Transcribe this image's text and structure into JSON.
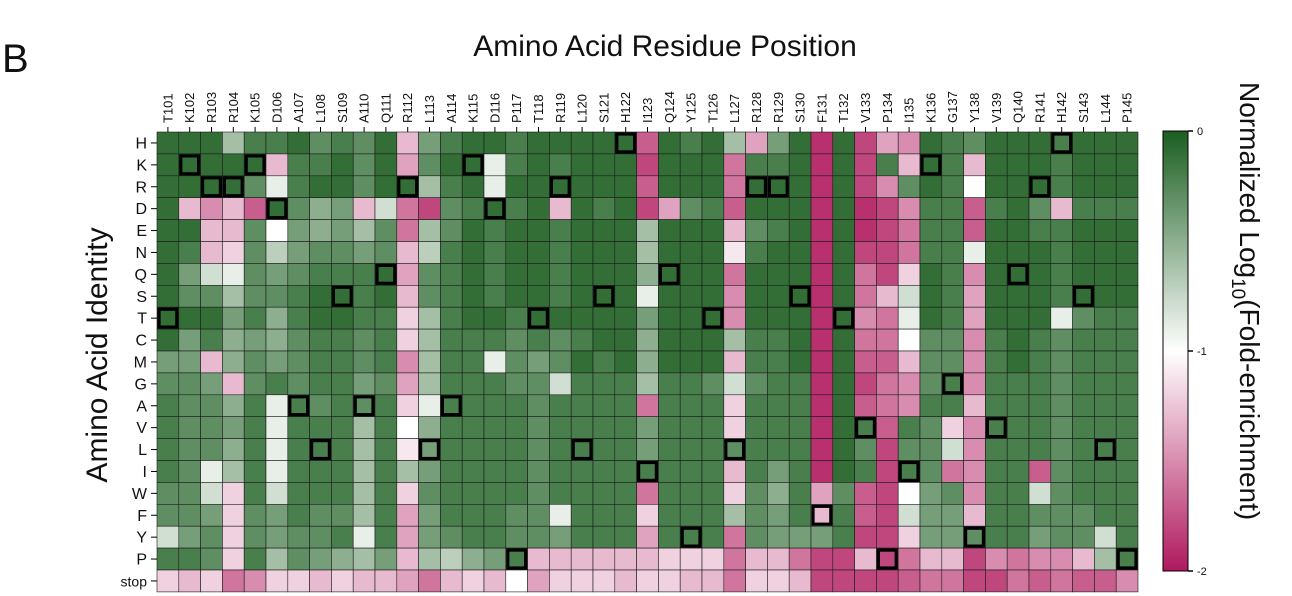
{
  "panel_label": "B",
  "chart_data": {
    "type": "heatmap",
    "title": "Amino Acid Residue Position",
    "xlabel": "Amino Acid Residue Position",
    "ylabel": "Amino Acid Identity",
    "colorbar_label": "Normalized Log10(Fold-enrichment)",
    "colorbar_label_parts": [
      "Normalized Log",
      "10",
      "(Fold-enrichment)"
    ],
    "colorbar_ticks": [
      "0",
      "-1",
      "-2"
    ],
    "colorbar_range": [
      -2,
      0
    ],
    "colors": {
      "high": "#1b5e20",
      "mid": "#ffffff",
      "low": "#b0195e"
    },
    "x_categories": [
      "T101",
      "K102",
      "R103",
      "R104",
      "K105",
      "D106",
      "A107",
      "L108",
      "S109",
      "A110",
      "Q111",
      "R112",
      "L113",
      "A114",
      "K115",
      "D116",
      "P117",
      "T118",
      "R119",
      "L120",
      "S121",
      "H122",
      "I123",
      "Q124",
      "Y125",
      "T126",
      "L127",
      "R128",
      "R129",
      "S130",
      "F131",
      "T132",
      "V133",
      "P134",
      "I135",
      "K136",
      "G137",
      "Y138",
      "V139",
      "Q140",
      "R141",
      "H142",
      "S143",
      "L144",
      "P145"
    ],
    "y_categories": [
      "H",
      "K",
      "R",
      "D",
      "E",
      "N",
      "Q",
      "S",
      "T",
      "C",
      "M",
      "G",
      "A",
      "V",
      "L",
      "I",
      "W",
      "F",
      "Y",
      "P",
      "stop"
    ],
    "values": [
      [
        -0.1,
        -0.1,
        -0.1,
        -0.6,
        -0.2,
        -0.2,
        -0.1,
        -0.3,
        -0.2,
        -0.3,
        -0.1,
        -1.3,
        -0.4,
        -0.2,
        -0.1,
        -0.1,
        -0.2,
        -0.1,
        -0.1,
        -0.1,
        -0.1,
        -0.1,
        -1.7,
        -0.1,
        -0.2,
        -0.1,
        -0.6,
        -1.4,
        -0.4,
        -0.1,
        -1.9,
        -0.1,
        -1.8,
        -1.4,
        -1.5,
        -0.1,
        -0.2,
        -0.3,
        -0.1,
        -0.1,
        -0.1,
        -0.2,
        -0.1,
        -0.1,
        -0.1
      ],
      [
        -0.1,
        -0.1,
        -0.1,
        -0.1,
        -0.1,
        -1.3,
        -0.2,
        -0.2,
        -0.1,
        -0.3,
        -0.1,
        -1.4,
        -0.3,
        -0.1,
        -0.1,
        -0.9,
        -0.2,
        -0.1,
        -0.2,
        -0.1,
        -0.1,
        -0.1,
        -1.8,
        -0.1,
        -0.1,
        -0.1,
        -1.6,
        -0.2,
        -0.2,
        -0.1,
        -1.9,
        -0.1,
        -1.8,
        -0.2,
        -1.3,
        -0.1,
        -0.2,
        -1.3,
        -0.1,
        -0.1,
        -0.1,
        -0.2,
        -0.1,
        -0.1,
        -0.1
      ],
      [
        -0.1,
        -0.1,
        -0.1,
        -0.1,
        -0.3,
        -0.9,
        -0.2,
        -0.1,
        -0.1,
        -0.3,
        -0.1,
        -0.1,
        -0.6,
        -0.2,
        -0.1,
        -0.9,
        -0.1,
        -0.1,
        -0.1,
        -0.1,
        -0.1,
        -0.1,
        -1.7,
        -0.1,
        -0.1,
        -0.1,
        -1.6,
        -0.1,
        -0.1,
        -0.1,
        -1.9,
        -0.1,
        -1.8,
        -1.5,
        -0.3,
        -0.1,
        -0.2,
        -1.0,
        -0.1,
        -0.1,
        -0.1,
        -0.2,
        -0.1,
        -0.1,
        -0.1
      ],
      [
        -0.1,
        -1.3,
        -1.5,
        -1.3,
        -1.7,
        -0.1,
        -0.3,
        -0.5,
        -0.4,
        -1.3,
        -0.8,
        -1.6,
        -1.8,
        -0.3,
        -0.2,
        -0.1,
        -0.2,
        -0.1,
        -1.3,
        -0.1,
        -0.2,
        -0.1,
        -1.8,
        -1.4,
        -0.3,
        -0.2,
        -1.7,
        -0.1,
        -0.1,
        -0.1,
        -1.9,
        -0.1,
        -1.9,
        -1.8,
        -1.5,
        -0.2,
        -0.2,
        -1.7,
        -0.2,
        -0.1,
        -0.3,
        -1.3,
        -0.2,
        -0.2,
        -0.2
      ],
      [
        -0.1,
        -0.1,
        -1.3,
        -1.3,
        -0.3,
        -1.0,
        -0.4,
        -0.5,
        -0.4,
        -0.6,
        -0.3,
        -1.6,
        -0.6,
        -0.3,
        -0.1,
        -0.2,
        -0.1,
        -0.1,
        -0.2,
        -0.1,
        -0.1,
        -0.1,
        -0.6,
        -0.1,
        -0.1,
        -0.1,
        -1.3,
        -0.3,
        -0.2,
        -0.1,
        -1.9,
        -0.1,
        -1.9,
        -1.8,
        -1.6,
        -0.2,
        -0.2,
        -1.7,
        -0.1,
        -0.1,
        -0.2,
        -0.2,
        -0.1,
        -0.1,
        -0.1
      ],
      [
        -0.1,
        -0.2,
        -1.3,
        -1.2,
        -0.3,
        -0.7,
        -0.4,
        -0.3,
        -0.3,
        -0.4,
        -0.3,
        -1.3,
        -0.7,
        -0.2,
        -0.1,
        -0.2,
        -0.1,
        -0.1,
        -0.2,
        -0.1,
        -0.1,
        -0.1,
        -0.6,
        -0.1,
        -0.1,
        -0.1,
        -1.1,
        -0.2,
        -0.1,
        -0.1,
        -1.9,
        -0.1,
        -1.8,
        -1.8,
        -1.6,
        -0.2,
        -0.2,
        -0.9,
        -0.1,
        -0.1,
        -0.1,
        -0.2,
        -0.1,
        -0.1,
        -0.1
      ],
      [
        -0.1,
        -0.4,
        -0.8,
        -0.9,
        -0.3,
        -0.4,
        -0.3,
        -0.2,
        -0.2,
        -0.2,
        -0.1,
        -1.4,
        -0.3,
        -0.2,
        -0.1,
        -0.2,
        -0.1,
        -0.1,
        -0.2,
        -0.1,
        -0.1,
        -0.1,
        -0.5,
        -0.1,
        -0.1,
        -0.1,
        -1.6,
        -0.1,
        -0.1,
        -0.1,
        -1.9,
        -0.1,
        -1.6,
        -1.8,
        -1.2,
        -0.1,
        -0.2,
        -1.5,
        -0.1,
        -0.1,
        -0.1,
        -0.2,
        -0.1,
        -0.1,
        -0.1
      ],
      [
        -0.1,
        -0.3,
        -0.3,
        -0.6,
        -0.3,
        -0.3,
        -0.2,
        -0.1,
        -0.1,
        -0.2,
        -0.1,
        -1.3,
        -0.3,
        -0.2,
        -0.1,
        -0.2,
        -0.1,
        -0.1,
        -0.2,
        -0.1,
        -0.1,
        -0.1,
        -0.9,
        -0.1,
        -0.1,
        -0.1,
        -1.5,
        -0.1,
        -0.1,
        -0.1,
        -1.9,
        -0.1,
        -1.6,
        -1.3,
        -0.8,
        -0.1,
        -0.2,
        -1.4,
        -0.1,
        -0.1,
        -0.1,
        -0.2,
        -0.1,
        -0.1,
        -0.1
      ],
      [
        -0.1,
        -0.1,
        -0.1,
        -0.4,
        -0.2,
        -0.5,
        -0.2,
        -0.1,
        -0.1,
        -0.2,
        -0.2,
        -1.2,
        -0.6,
        -0.2,
        -0.1,
        -0.1,
        -0.2,
        -0.1,
        -0.1,
        -0.1,
        -0.1,
        -0.1,
        -0.4,
        -0.1,
        -0.1,
        -0.1,
        -1.5,
        -0.1,
        -0.1,
        -0.1,
        -1.9,
        -0.1,
        -1.5,
        -1.6,
        -0.9,
        -0.1,
        -0.2,
        -1.4,
        -0.1,
        -0.1,
        -0.1,
        -0.9,
        -0.3,
        -0.2,
        -0.2
      ],
      [
        -0.1,
        -0.4,
        -0.2,
        -0.5,
        -0.4,
        -0.5,
        -0.3,
        -0.2,
        -0.2,
        -0.3,
        -0.2,
        -1.2,
        -0.6,
        -0.2,
        -0.2,
        -0.2,
        -0.3,
        -0.2,
        -0.3,
        -0.2,
        -0.1,
        -0.1,
        -0.5,
        -0.1,
        -0.1,
        -0.1,
        -0.6,
        -0.2,
        -0.2,
        -0.1,
        -1.9,
        -0.1,
        -1.6,
        -1.6,
        -1.0,
        -0.3,
        -0.3,
        -1.5,
        -0.2,
        -0.1,
        -0.2,
        -0.3,
        -0.2,
        -0.2,
        -0.2
      ],
      [
        -0.4,
        -0.4,
        -1.3,
        -0.5,
        -0.3,
        -0.4,
        -0.3,
        -0.2,
        -0.2,
        -0.3,
        -0.2,
        -1.5,
        -0.6,
        -0.2,
        -0.2,
        -0.9,
        -0.3,
        -0.4,
        -0.3,
        -0.1,
        -0.2,
        -0.1,
        -0.5,
        -0.1,
        -0.1,
        -0.1,
        -1.3,
        -0.2,
        -0.2,
        -0.1,
        -1.9,
        -0.1,
        -1.7,
        -1.7,
        -1.3,
        -0.3,
        -0.3,
        -1.5,
        -0.2,
        -0.1,
        -0.2,
        -0.3,
        -0.2,
        -0.2,
        -0.2
      ],
      [
        -0.3,
        -0.3,
        -0.4,
        -1.3,
        -0.3,
        -0.2,
        -0.3,
        -0.2,
        -0.2,
        -0.4,
        -0.3,
        -1.4,
        -0.6,
        -0.2,
        -0.2,
        -0.2,
        -0.3,
        -0.3,
        -0.8,
        -0.2,
        -0.2,
        -0.2,
        -0.6,
        -0.2,
        -0.2,
        -0.3,
        -0.8,
        -0.3,
        -0.2,
        -0.2,
        -1.9,
        -0.1,
        -1.8,
        -1.6,
        -1.5,
        -0.3,
        -0.2,
        -1.5,
        -0.2,
        -0.2,
        -0.2,
        -0.3,
        -0.2,
        -0.2,
        -0.2
      ],
      [
        -0.2,
        -0.3,
        -0.3,
        -0.5,
        -0.2,
        -0.9,
        -0.2,
        -0.3,
        -0.2,
        -0.3,
        -0.2,
        -1.2,
        -0.9,
        -0.2,
        -0.2,
        -0.2,
        -0.2,
        -0.3,
        -0.2,
        -0.2,
        -0.2,
        -0.2,
        -1.6,
        -0.2,
        -0.2,
        -0.2,
        -1.2,
        -0.2,
        -0.2,
        -0.2,
        -1.9,
        -0.1,
        -1.7,
        -1.6,
        -1.5,
        -0.2,
        -0.2,
        -1.3,
        -0.2,
        -0.2,
        -0.2,
        -0.3,
        -0.2,
        -0.2,
        -0.2
      ],
      [
        -0.2,
        -0.3,
        -0.3,
        -0.4,
        -0.2,
        -0.9,
        -0.2,
        -0.2,
        -0.2,
        -0.6,
        -0.2,
        -1.0,
        -0.5,
        -0.2,
        -0.2,
        -0.2,
        -0.2,
        -0.3,
        -0.2,
        -0.2,
        -0.2,
        -0.2,
        -0.4,
        -0.2,
        -0.2,
        -0.2,
        -1.2,
        -0.2,
        -0.2,
        -0.2,
        -1.9,
        -0.1,
        -0.2,
        -1.7,
        -0.2,
        -0.3,
        -1.2,
        -1.5,
        -0.2,
        -0.2,
        -0.2,
        -0.3,
        -0.2,
        -0.2,
        -0.2
      ],
      [
        -0.2,
        -0.3,
        -0.3,
        -0.5,
        -0.2,
        -0.9,
        -0.2,
        -0.2,
        -0.2,
        -0.6,
        -0.2,
        -1.1,
        -0.4,
        -0.2,
        -0.2,
        -0.2,
        -0.2,
        -0.3,
        -0.2,
        -0.2,
        -0.2,
        -0.2,
        -0.4,
        -0.2,
        -0.2,
        -0.2,
        -0.3,
        -0.2,
        -0.2,
        -0.2,
        -1.9,
        -0.1,
        -0.3,
        -1.8,
        -0.3,
        -0.3,
        -0.8,
        -1.5,
        -0.2,
        -0.2,
        -0.2,
        -0.3,
        -0.2,
        -0.2,
        -0.2
      ],
      [
        -0.2,
        -0.3,
        -0.9,
        -0.6,
        -0.2,
        -0.9,
        -0.2,
        -0.2,
        -0.2,
        -0.6,
        -0.2,
        -0.6,
        -0.4,
        -0.2,
        -0.2,
        -0.2,
        -0.2,
        -0.3,
        -0.2,
        -0.2,
        -0.2,
        -0.2,
        -0.2,
        -0.2,
        -0.2,
        -0.2,
        -1.3,
        -0.2,
        -0.4,
        -0.2,
        -1.9,
        -0.1,
        -0.2,
        -1.8,
        -0.2,
        -0.3,
        -1.6,
        -1.5,
        -0.2,
        -0.2,
        -1.7,
        -0.3,
        -0.2,
        -0.2,
        -0.2
      ],
      [
        -0.3,
        -0.3,
        -0.8,
        -1.2,
        -0.2,
        -0.8,
        -0.2,
        -0.2,
        -0.2,
        -0.6,
        -0.2,
        -1.2,
        -0.3,
        -0.2,
        -0.2,
        -0.2,
        -0.2,
        -0.3,
        -0.2,
        -0.2,
        -0.2,
        -0.2,
        -1.6,
        -0.2,
        -0.2,
        -0.2,
        -1.2,
        -0.3,
        -0.5,
        -0.2,
        -1.4,
        -0.3,
        -1.7,
        -1.8,
        -1.0,
        -0.4,
        -0.3,
        -1.5,
        -0.2,
        -0.2,
        -0.8,
        -0.3,
        -0.2,
        -0.2,
        -0.2
      ],
      [
        -0.3,
        -0.3,
        -0.4,
        -1.2,
        -0.3,
        -0.4,
        -0.2,
        -0.3,
        -0.3,
        -0.6,
        -0.2,
        -1.4,
        -0.4,
        -0.2,
        -0.2,
        -0.2,
        -0.3,
        -0.3,
        -0.9,
        -0.2,
        -0.2,
        -0.2,
        -1.2,
        -0.2,
        -0.2,
        -0.2,
        -0.6,
        -0.3,
        -0.4,
        -0.2,
        -1.3,
        -0.2,
        -1.7,
        -1.8,
        -0.8,
        -0.4,
        -0.4,
        -1.3,
        -0.2,
        -0.2,
        -0.3,
        -0.3,
        -0.3,
        -0.2,
        -0.2
      ],
      [
        -0.8,
        -0.4,
        -0.3,
        -1.2,
        -0.3,
        -0.4,
        -0.3,
        -0.3,
        -0.2,
        -0.9,
        -0.2,
        -1.4,
        -0.4,
        -0.3,
        -0.2,
        -0.2,
        -0.3,
        -0.3,
        -0.4,
        -0.2,
        -0.2,
        -0.2,
        -1.4,
        -0.2,
        -0.2,
        -0.2,
        -1.6,
        -0.3,
        -0.4,
        -0.4,
        -0.4,
        -0.2,
        -1.8,
        -1.8,
        -1.2,
        -0.4,
        -0.4,
        -0.3,
        -0.2,
        -0.2,
        -0.4,
        -0.3,
        -0.3,
        -0.8,
        -0.2
      ],
      [
        -0.2,
        -0.2,
        -0.3,
        -1.2,
        -0.2,
        -0.6,
        -0.3,
        -0.4,
        -0.5,
        -0.6,
        -0.4,
        -1.3,
        -0.6,
        -0.7,
        -0.5,
        -0.4,
        -0.2,
        -1.3,
        -1.3,
        -1.3,
        -1.3,
        -1.3,
        -1.3,
        -1.2,
        -1.2,
        -1.2,
        -1.6,
        -1.3,
        -1.3,
        -1.6,
        -1.8,
        -1.8,
        -1.3,
        -1.8,
        -1.6,
        -1.3,
        -1.3,
        -1.8,
        -1.5,
        -1.6,
        -1.5,
        -1.5,
        -1.3,
        -0.6,
        -0.2
      ],
      [
        -1.2,
        -1.3,
        -1.2,
        -1.6,
        -1.5,
        -1.2,
        -1.2,
        -1.3,
        -1.2,
        -1.3,
        -1.3,
        -1.4,
        -1.6,
        -1.3,
        -1.2,
        -1.3,
        -1.0,
        -1.4,
        -1.2,
        -1.2,
        -1.2,
        -1.3,
        -1.2,
        -1.2,
        -1.3,
        -1.3,
        -1.6,
        -1.2,
        -1.2,
        -1.3,
        -1.8,
        -1.8,
        -1.8,
        -1.8,
        -1.7,
        -1.6,
        -1.6,
        -1.8,
        -1.8,
        -1.6,
        -1.7,
        -1.6,
        -1.7,
        -1.7,
        -1.5
      ]
    ],
    "highlighted_cells": [
      {
        "x": "T101",
        "y": "T"
      },
      {
        "x": "K102",
        "y": "K"
      },
      {
        "x": "R103",
        "y": "R"
      },
      {
        "x": "R104",
        "y": "R"
      },
      {
        "x": "K105",
        "y": "K"
      },
      {
        "x": "D106",
        "y": "D"
      },
      {
        "x": "A107",
        "y": "A"
      },
      {
        "x": "L108",
        "y": "L"
      },
      {
        "x": "S109",
        "y": "S"
      },
      {
        "x": "A110",
        "y": "A"
      },
      {
        "x": "Q111",
        "y": "Q"
      },
      {
        "x": "R112",
        "y": "R"
      },
      {
        "x": "L113",
        "y": "L"
      },
      {
        "x": "A114",
        "y": "A"
      },
      {
        "x": "K115",
        "y": "K"
      },
      {
        "x": "D116",
        "y": "D"
      },
      {
        "x": "P117",
        "y": "P"
      },
      {
        "x": "T118",
        "y": "T"
      },
      {
        "x": "R119",
        "y": "R"
      },
      {
        "x": "L120",
        "y": "L"
      },
      {
        "x": "S121",
        "y": "S"
      },
      {
        "x": "H122",
        "y": "H"
      },
      {
        "x": "I123",
        "y": "I"
      },
      {
        "x": "Q124",
        "y": "Q"
      },
      {
        "x": "Y125",
        "y": "Y"
      },
      {
        "x": "T126",
        "y": "T"
      },
      {
        "x": "L127",
        "y": "L"
      },
      {
        "x": "R128",
        "y": "R"
      },
      {
        "x": "R129",
        "y": "R"
      },
      {
        "x": "S130",
        "y": "S"
      },
      {
        "x": "F131",
        "y": "F"
      },
      {
        "x": "T132",
        "y": "T"
      },
      {
        "x": "V133",
        "y": "V"
      },
      {
        "x": "P134",
        "y": "P"
      },
      {
        "x": "I135",
        "y": "I"
      },
      {
        "x": "K136",
        "y": "K"
      },
      {
        "x": "G137",
        "y": "G"
      },
      {
        "x": "Y138",
        "y": "Y"
      },
      {
        "x": "V139",
        "y": "V"
      },
      {
        "x": "Q140",
        "y": "Q"
      },
      {
        "x": "R141",
        "y": "R"
      },
      {
        "x": "H142",
        "y": "H"
      },
      {
        "x": "S143",
        "y": "S"
      },
      {
        "x": "L144",
        "y": "L"
      },
      {
        "x": "P145",
        "y": "P"
      }
    ]
  }
}
